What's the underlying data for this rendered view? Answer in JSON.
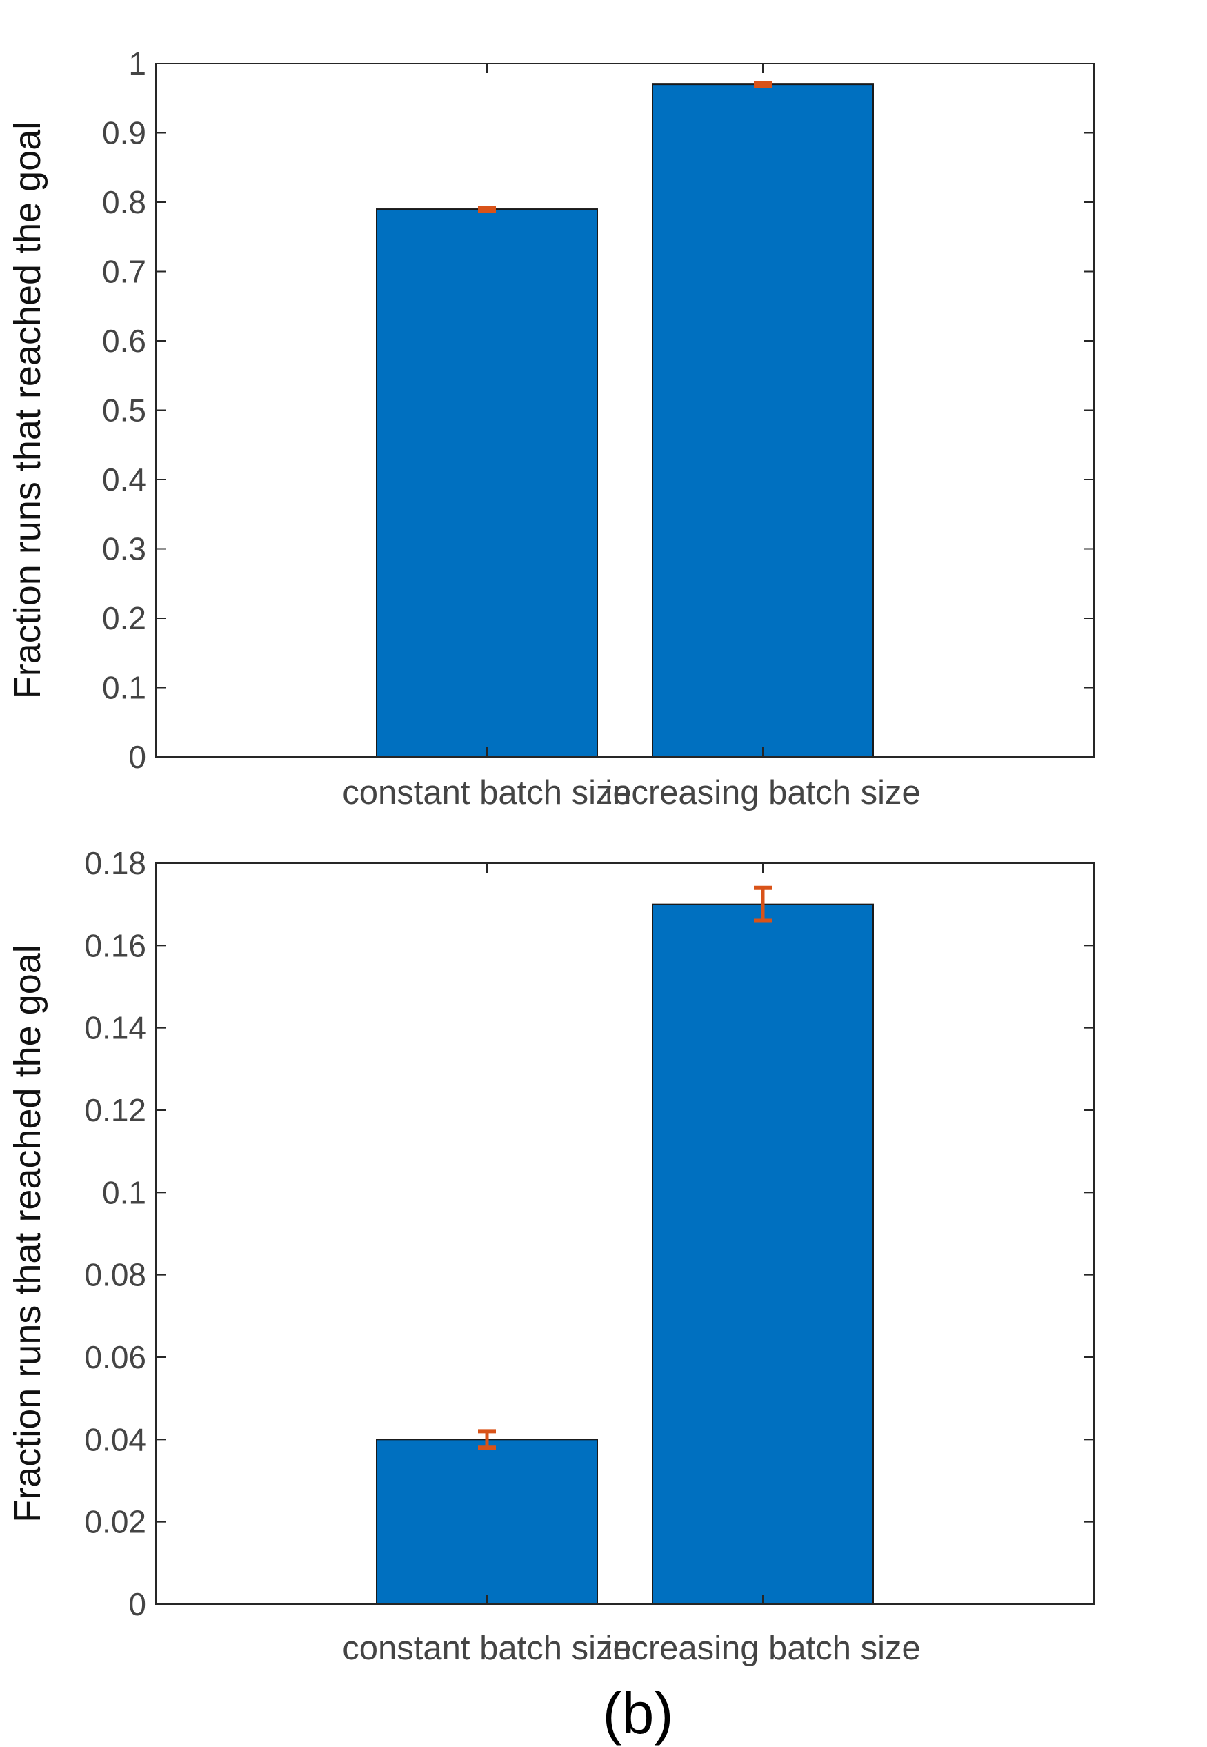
{
  "figure": {
    "caption": "(b)",
    "colors": {
      "bar": "#0070c0",
      "error": "#d95319",
      "axis": "#262626",
      "text": "#444444"
    }
  },
  "chart_data": [
    {
      "type": "bar",
      "categories": [
        "constant batch size",
        "increasing batch size"
      ],
      "values": [
        0.79,
        0.97
      ],
      "error_low": [
        0.0,
        0.0
      ],
      "error_high": [
        0.0,
        0.0
      ],
      "ylabel": "Fraction runs that reached the goal",
      "xlabel": "",
      "ylim": [
        0,
        1
      ],
      "yticks": [
        0,
        0.1,
        0.2,
        0.3,
        0.4,
        0.5,
        0.6,
        0.7,
        0.8,
        0.9,
        1
      ],
      "ytick_labels": [
        "0",
        "0.1",
        "0.2",
        "0.3",
        "0.4",
        "0.5",
        "0.6",
        "0.7",
        "0.8",
        "0.9",
        "1"
      ],
      "grid": false,
      "legend": "none"
    },
    {
      "type": "bar",
      "categories": [
        "constant batch size",
        "increasing batch size"
      ],
      "values": [
        0.04,
        0.17
      ],
      "error_low": [
        0.038,
        0.166
      ],
      "error_high": [
        0.042,
        0.174
      ],
      "ylabel": "Fraction runs that reached the goal",
      "xlabel": "",
      "ylim": [
        0,
        0.18
      ],
      "yticks": [
        0,
        0.02,
        0.04,
        0.06,
        0.08,
        0.1,
        0.12,
        0.14,
        0.16,
        0.18
      ],
      "ytick_labels": [
        "0",
        "0.02",
        "0.04",
        "0.06",
        "0.08",
        "0.1",
        "0.12",
        "0.14",
        "0.16",
        "0.18"
      ],
      "grid": false,
      "legend": "none"
    }
  ]
}
